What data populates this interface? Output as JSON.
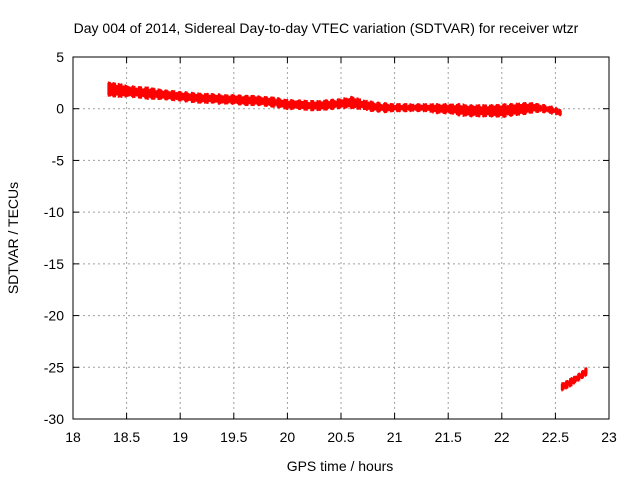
{
  "chart_data": {
    "type": "scatter",
    "title": "Day 004 of 2014, Sidereal Day-to-day VTEC variation (SDTVAR) for receiver wtzr",
    "xlabel": "GPS time / hours",
    "ylabel": "SDTVAR / TECUs",
    "xlim": [
      18,
      23
    ],
    "ylim": [
      -30,
      5
    ],
    "grid": true,
    "x_ticks": [
      18,
      18.5,
      19,
      19.5,
      20,
      20.5,
      21,
      21.5,
      22,
      22.5,
      23
    ],
    "x_tick_labels": [
      "18",
      "18.5",
      "19",
      "19.5",
      "20",
      "20.5",
      "21",
      "21.5",
      "22",
      "22.5",
      "23"
    ],
    "y_ticks": [
      5,
      0,
      -5,
      -10,
      -15,
      -20,
      -25,
      -30
    ],
    "y_tick_labels": [
      "5",
      "0",
      "-5",
      "-10",
      "-15",
      "-20",
      "-25",
      "-30"
    ],
    "series": [
      {
        "name": "SDTVAR",
        "color": "#ff0000",
        "segments": [
          {
            "x": [
              18.33,
              18.4,
              18.5,
              18.6,
              18.7,
              18.8,
              18.9,
              19.0,
              19.1,
              19.2,
              19.3,
              19.4,
              19.5,
              19.6,
              19.7,
              19.8,
              19.9,
              20.0,
              20.1,
              20.2,
              20.3,
              20.4,
              20.5,
              20.6,
              20.7,
              20.8,
              20.9,
              21.0,
              21.1,
              21.2,
              21.3,
              21.4,
              21.5,
              21.6,
              21.7,
              21.8,
              21.9,
              22.0,
              22.1,
              22.2,
              22.3,
              22.4,
              22.5,
              22.55
            ],
            "y": [
              1.9,
              1.8,
              1.7,
              1.6,
              1.5,
              1.4,
              1.3,
              1.2,
              1.1,
              1.0,
              1.0,
              0.9,
              0.9,
              0.8,
              0.8,
              0.7,
              0.6,
              0.4,
              0.4,
              0.3,
              0.3,
              0.4,
              0.5,
              0.6,
              0.4,
              0.2,
              0.1,
              0.1,
              0.1,
              0.1,
              0.1,
              0.0,
              0.0,
              -0.1,
              -0.2,
              -0.2,
              -0.2,
              -0.2,
              -0.1,
              0.0,
              0.1,
              0.0,
              -0.2,
              -0.4
            ],
            "spread": [
              0.6,
              0.6,
              0.5,
              0.5,
              0.5,
              0.4,
              0.4,
              0.4,
              0.4,
              0.4,
              0.4,
              0.4,
              0.4,
              0.4,
              0.4,
              0.4,
              0.4,
              0.4,
              0.4,
              0.4,
              0.4,
              0.4,
              0.4,
              0.5,
              0.4,
              0.4,
              0.4,
              0.3,
              0.3,
              0.3,
              0.3,
              0.4,
              0.4,
              0.5,
              0.5,
              0.5,
              0.5,
              0.6,
              0.5,
              0.5,
              0.4,
              0.3,
              0.3,
              0.2
            ]
          },
          {
            "x": [
              22.56,
              22.62,
              22.68,
              22.74,
              22.79
            ],
            "y": [
              -26.9,
              -26.6,
              -26.2,
              -25.8,
              -25.4
            ],
            "spread": [
              0.3,
              0.3,
              0.3,
              0.3,
              0.3
            ]
          }
        ]
      }
    ]
  }
}
